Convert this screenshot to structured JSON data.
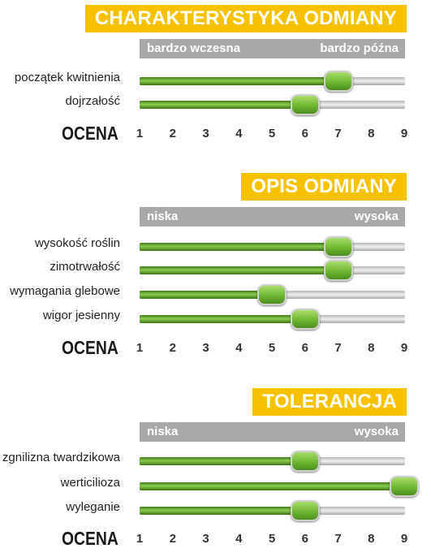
{
  "scale_max": 9,
  "colors": {
    "badge": "#f6c200",
    "band": "#a9a9a9",
    "fill": "#5aa625"
  },
  "chart_data": [
    {
      "type": "bar",
      "title": "CHARAKTERYSTYKA ODMIANY",
      "scale_low_label": "bardzo wczesna",
      "scale_high_label": "bardzo późna",
      "xlabel": "OCENA",
      "xticks": [
        "1",
        "2",
        "3",
        "4",
        "5",
        "6",
        "7",
        "8",
        "9"
      ],
      "xlim": [
        1,
        9
      ],
      "categories": [
        "początek kwitnienia",
        "dojrzałość"
      ],
      "values": [
        7,
        6
      ]
    },
    {
      "type": "bar",
      "title": "OPIS ODMIANY",
      "scale_low_label": "niska",
      "scale_high_label": "wysoka",
      "xlabel": "OCENA",
      "xticks": [
        "1",
        "2",
        "3",
        "4",
        "5",
        "6",
        "7",
        "8",
        "9"
      ],
      "xlim": [
        1,
        9
      ],
      "categories": [
        "wysokość roślin",
        "zimotrwałość",
        "wymagania glebowe",
        "wigor jesienny"
      ],
      "values": [
        7,
        7,
        5,
        6
      ]
    },
    {
      "type": "bar",
      "title": "TOLERANCJA",
      "scale_low_label": "niska",
      "scale_high_label": "wysoka",
      "xlabel": "OCENA",
      "xticks": [
        "1",
        "2",
        "3",
        "4",
        "5",
        "6",
        "7",
        "8",
        "9"
      ],
      "xlim": [
        1,
        9
      ],
      "categories": [
        "zgnilizna twardzikowa",
        "werticilioza",
        "wyleganie"
      ],
      "values": [
        6,
        9,
        6
      ]
    }
  ]
}
